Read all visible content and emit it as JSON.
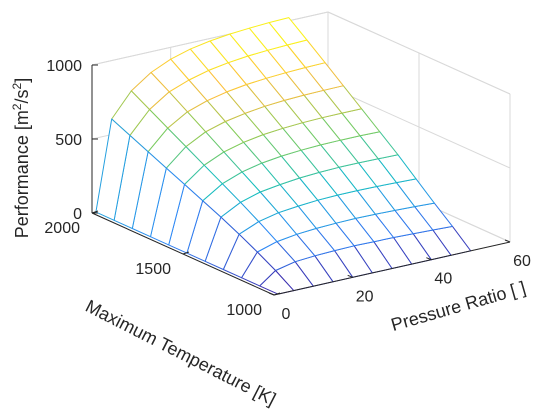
{
  "chart_data": {
    "type": "surface",
    "title": "",
    "xlabel": "Pressure Ratio [ ]",
    "ylabel": "Maximum Temperature [K]",
    "zlabel_main": "Performance [m",
    "zlabel_sup1": "2",
    "zlabel_mid": "/s",
    "zlabel_sup2": "2",
    "zlabel_end": "]",
    "xlim": [
      0,
      60
    ],
    "ylim": [
      1000,
      2000
    ],
    "zlim": [
      0,
      1000
    ],
    "x_ticks": [
      0,
      20,
      40,
      60
    ],
    "y_ticks": [
      1000,
      1500,
      2000
    ],
    "z_ticks": [
      0,
      500,
      1000
    ],
    "x_tick_labels": [
      "0",
      "20",
      "40",
      "60"
    ],
    "y_tick_labels": [
      "1000",
      "1500",
      "2000"
    ],
    "z_tick_labels": [
      "0",
      "500",
      "1000"
    ],
    "grid": true,
    "colormap": "parula",
    "colors": [
      "#3e26a8",
      "#2e87f7",
      "#17bec0",
      "#81cc59",
      "#fdbc3c",
      "#f9fb15"
    ],
    "x": [
      1,
      5,
      10,
      15,
      20,
      25,
      30,
      35,
      40,
      45,
      50
    ],
    "y": [
      1000,
      1100,
      1200,
      1300,
      1400,
      1500,
      1600,
      1700,
      1800,
      1900,
      2000
    ],
    "z": [
      [
        0,
        0,
        0,
        0,
        0,
        0,
        0,
        0,
        0,
        0,
        0
      ],
      [
        0,
        80,
        110,
        120,
        125,
        128,
        126,
        124,
        120,
        115,
        110
      ],
      [
        0,
        150,
        190,
        210,
        220,
        225,
        228,
        226,
        222,
        218,
        212
      ],
      [
        0,
        215,
        270,
        300,
        315,
        325,
        330,
        330,
        328,
        325,
        320
      ],
      [
        0,
        275,
        345,
        385,
        405,
        420,
        428,
        432,
        432,
        430,
        428
      ],
      [
        0,
        330,
        415,
        465,
        495,
        512,
        522,
        528,
        530,
        530,
        528
      ],
      [
        0,
        385,
        485,
        545,
        580,
        602,
        615,
        623,
        627,
        628,
        628
      ],
      [
        0,
        440,
        555,
        625,
        665,
        690,
        708,
        718,
        724,
        727,
        728
      ],
      [
        0,
        495,
        625,
        705,
        750,
        780,
        800,
        812,
        820,
        825,
        828
      ],
      [
        0,
        550,
        695,
        785,
        835,
        870,
        892,
        907,
        916,
        922,
        926
      ],
      [
        0,
        605,
        765,
        860,
        920,
        958,
        983,
        1000,
        1010,
        1018,
        1022
      ]
    ]
  }
}
